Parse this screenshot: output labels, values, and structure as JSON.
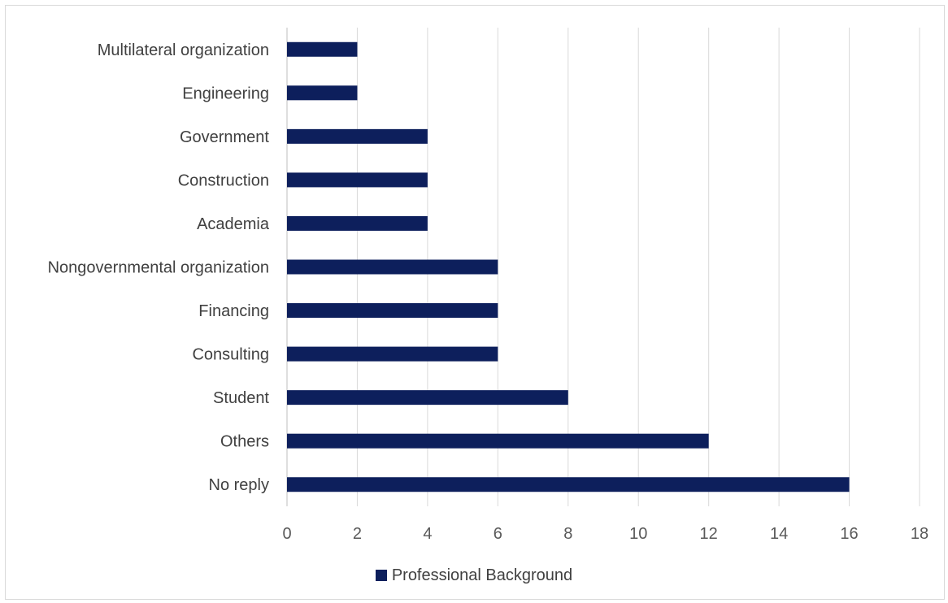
{
  "chart_data": {
    "type": "bar",
    "orientation": "horizontal",
    "categories": [
      "No reply",
      "Others",
      "Student",
      "Consulting",
      "Financing",
      "Nongovernmental organization",
      "Academia",
      "Construction",
      "Government",
      "Engineering",
      "Multilateral organization"
    ],
    "series": [
      {
        "name": "Professional Background",
        "values": [
          16,
          12,
          8,
          6,
          6,
          6,
          4,
          4,
          4,
          2,
          2
        ],
        "color": "#0d1f5c"
      }
    ],
    "xlim": [
      0,
      18
    ],
    "xticks": [
      0,
      2,
      4,
      6,
      8,
      10,
      12,
      14,
      16,
      18
    ],
    "grid": "vertical",
    "gridColor": "#d9d9d9",
    "legend": "bottom"
  }
}
